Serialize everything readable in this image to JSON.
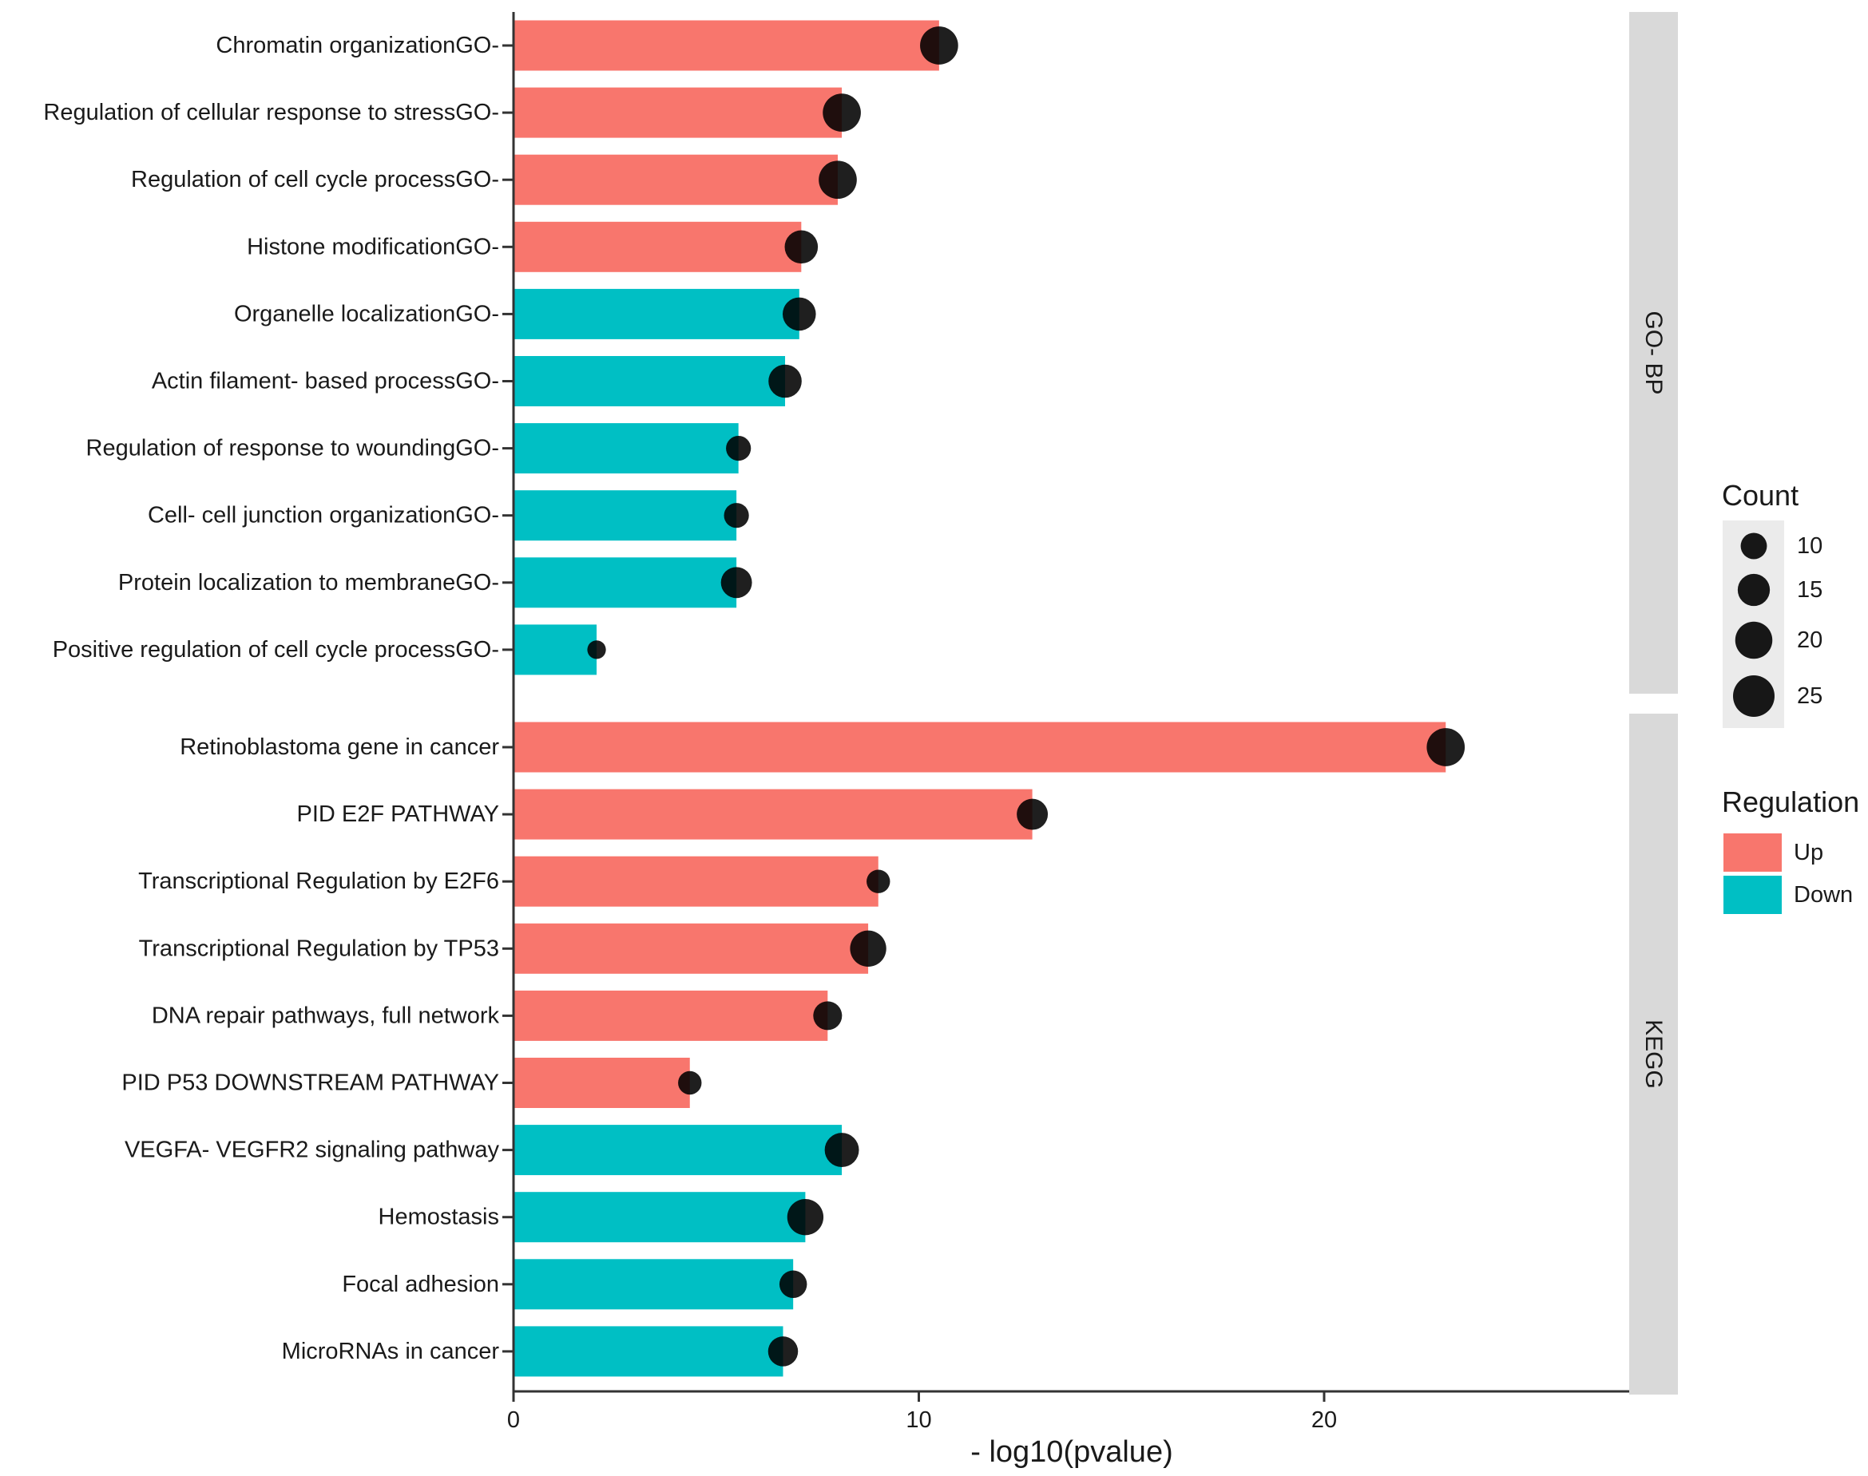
{
  "chart_data": {
    "type": "bar",
    "xlabel": "- log10(pvalue)",
    "ylabel": "",
    "xlim": [
      0,
      27.5
    ],
    "x_ticks": [
      0,
      10,
      20
    ],
    "grid": false,
    "panels": [
      {
        "strip": "GO- BP",
        "categories": [
          "Chromatin organizationGO-",
          "Regulation of cellular response to stressGO-",
          "Regulation of cell cycle processGO-",
          "Histone modificationGO-",
          "Organelle localizationGO-",
          "Actin filament- based processGO-",
          "Regulation of response to woundingGO-",
          "Cell- cell junction organizationGO-",
          "Protein localization to membraneGO-",
          "Positive regulation of cell cycle processGO-"
        ],
        "values": [
          10.5,
          8.1,
          8.0,
          7.1,
          7.05,
          6.7,
          5.55,
          5.5,
          5.5,
          2.05
        ],
        "regulation": [
          "Up",
          "Up",
          "Up",
          "Up",
          "Down",
          "Down",
          "Down",
          "Down",
          "Down",
          "Down"
        ],
        "counts": [
          21,
          21,
          21,
          16,
          16,
          16,
          9,
          9,
          14,
          5
        ]
      },
      {
        "strip": "KEGG",
        "categories": [
          "Retinoblastoma gene in cancer",
          "PID E2F PATHWAY",
          "Transcriptional Regulation by E2F6",
          "Transcriptional Regulation by TP53",
          "DNA repair pathways, full network",
          "PID P53 DOWNSTREAM PATHWAY",
          "VEGFA- VEGFR2 signaling pathway",
          "Hemostasis",
          "Focal adhesion",
          "MicroRNAs in cancer"
        ],
        "values": [
          23.0,
          12.8,
          9.0,
          8.75,
          7.75,
          4.35,
          8.1,
          7.2,
          6.9,
          6.65
        ],
        "regulation": [
          "Up",
          "Up",
          "Up",
          "Up",
          "Up",
          "Up",
          "Down",
          "Down",
          "Down",
          "Down"
        ],
        "counts": [
          21,
          14,
          8,
          19,
          12,
          8,
          17,
          19,
          11,
          13
        ]
      }
    ],
    "legend": {
      "placement": "right",
      "count_title": "Count",
      "count_levels": [
        10,
        15,
        20,
        25
      ],
      "regulation_title": "Regulation",
      "regulation_entries": [
        {
          "label": "Up",
          "color": "#F8766D"
        },
        {
          "label": "Down",
          "color": "#00BFC4"
        }
      ]
    },
    "colors": {
      "Up": "#F8766D",
      "Down": "#00BFC4",
      "dot": "#000000",
      "strip": "#D9D9D9",
      "legend_key_bg": "#EBEBEB"
    }
  }
}
